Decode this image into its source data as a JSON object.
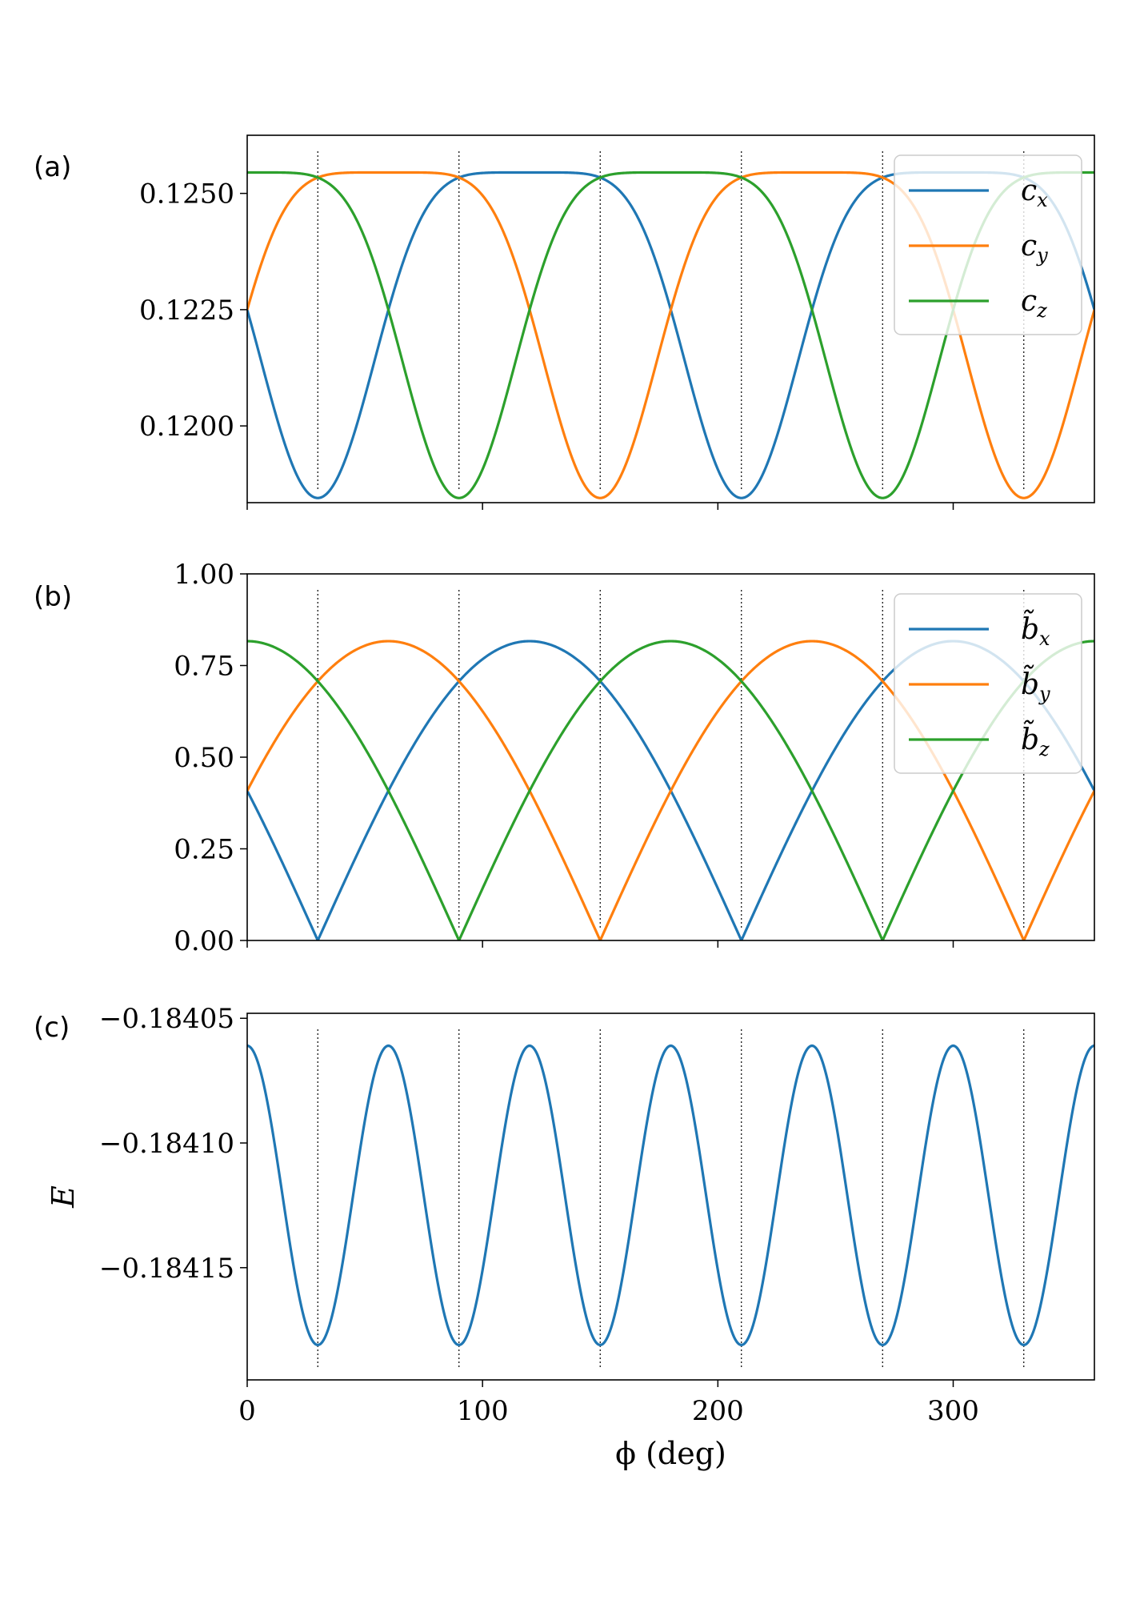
{
  "panel_labels": [
    "(a)",
    "(b)",
    "(c)"
  ],
  "colors": {
    "x": "#1f77b4",
    "y": "#ff7f0e",
    "z": "#2ca02c",
    "guide": "#000000"
  },
  "chart_data": [
    {
      "type": "line",
      "panel": "(a)",
      "xlim": [
        0,
        360
      ],
      "ylim": [
        0.11835,
        0.12625
      ],
      "yticks": [
        0.12,
        0.1225,
        0.125
      ],
      "ytick_labels": [
        "0.1200",
        "0.1225",
        "0.1250"
      ],
      "xticks": [
        0,
        100,
        200,
        300
      ],
      "xtick_labels": [],
      "xlabel": "",
      "ylabel": "",
      "vlines": [
        30,
        90,
        150,
        210,
        270,
        330
      ],
      "legend": {
        "position": "upper-right",
        "entries": [
          [
            "c",
            "x"
          ],
          [
            "c",
            "y"
          ],
          [
            "c",
            "z"
          ]
        ]
      },
      "series": [
        {
          "name": "c_x",
          "color_key": "x",
          "formula": "c",
          "phase": 120,
          "amp_hi": 0.12545,
          "mid": 0.12135,
          "amp_lo": 0.11845,
          "shape": "flat-top"
        },
        {
          "name": "c_y",
          "color_key": "y",
          "formula": "c",
          "phase": 60,
          "amp_hi": 0.12545,
          "mid": 0.12135,
          "amp_lo": 0.11845,
          "shape": "flat-top"
        },
        {
          "name": "c_z",
          "color_key": "z",
          "formula": "c",
          "phase": 0,
          "amp_hi": 0.12545,
          "mid": 0.12135,
          "amp_lo": 0.11845,
          "shape": "flat-top"
        }
      ]
    },
    {
      "type": "line",
      "panel": "(b)",
      "xlim": [
        0,
        360
      ],
      "ylim": [
        0,
        1.0
      ],
      "yticks": [
        0.0,
        0.25,
        0.5,
        0.75,
        1.0
      ],
      "ytick_labels": [
        "0.00",
        "0.25",
        "0.50",
        "0.75",
        "1.00"
      ],
      "xticks": [
        0,
        100,
        200,
        300
      ],
      "xtick_labels": [],
      "xlabel": "",
      "ylabel": "",
      "vlines": [
        30,
        90,
        150,
        210,
        270,
        330
      ],
      "legend": {
        "position": "upper-right",
        "entries": [
          [
            "b̃",
            "x"
          ],
          [
            "b̃",
            "y"
          ],
          [
            "b̃",
            "z"
          ]
        ]
      },
      "series": [
        {
          "name": "b_x",
          "color_key": "x",
          "amplitude": 0.8165,
          "phase": 120
        },
        {
          "name": "b_y",
          "color_key": "y",
          "amplitude": 0.8165,
          "phase": 60
        },
        {
          "name": "b_z",
          "color_key": "z",
          "amplitude": 0.8165,
          "phase": 0
        }
      ]
    },
    {
      "type": "line",
      "panel": "(c)",
      "xlim": [
        0,
        360
      ],
      "ylim": [
        -0.184195,
        -0.184048
      ],
      "yticks": [
        -0.18415,
        -0.1841,
        -0.18405
      ],
      "ytick_labels": [
        "−0.18415",
        "−0.18410",
        "−0.18405"
      ],
      "xticks": [
        0,
        100,
        200,
        300
      ],
      "xtick_labels": [
        "0",
        "100",
        "200",
        "300"
      ],
      "xlabel": "ϕ (deg)",
      "ylabel": "E",
      "vlines": [
        30,
        90,
        150,
        210,
        270,
        330
      ],
      "series": [
        {
          "name": "E",
          "color_key": "x",
          "max": -0.184061,
          "min": -0.184181,
          "period": 60,
          "peak_at": 0
        }
      ]
    }
  ]
}
